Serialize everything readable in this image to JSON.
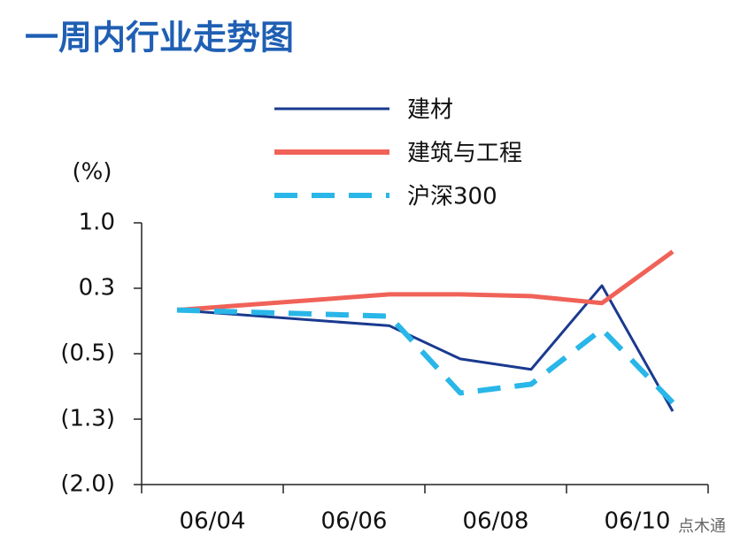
{
  "chart_data": {
    "type": "line",
    "title": "一周内行业走势图",
    "y_unit_label": "(%)",
    "categories": [
      "06/04",
      null,
      "06/06",
      null,
      "06/08",
      null,
      "06/10",
      null
    ],
    "series": [
      {
        "name": "建材",
        "color": "#1a3a8f",
        "dash": false,
        "values": [
          0.0,
          null,
          null,
          -0.18,
          -0.56,
          -0.68,
          0.28,
          -1.16
        ]
      },
      {
        "name": "建筑与工程",
        "color": "#f06258",
        "dash": false,
        "values": [
          0.0,
          null,
          null,
          0.18,
          0.18,
          0.16,
          0.08,
          0.67
        ]
      },
      {
        "name": "沪深300",
        "color": "#29b6e8",
        "dash": true,
        "values": [
          0.0,
          null,
          null,
          -0.07,
          -0.95,
          -0.85,
          -0.22,
          -1.06
        ]
      }
    ],
    "ylim": [
      -2.0,
      1.0
    ],
    "yticks": [
      {
        "value": 1.0,
        "label": "1.0"
      },
      {
        "value": 0.25,
        "label": "0.3"
      },
      {
        "value": -0.5,
        "label": "(0.5)"
      },
      {
        "value": -1.25,
        "label": "(1.3)"
      },
      {
        "value": -2.0,
        "label": "(2.0)"
      }
    ],
    "legend": "top-right",
    "watermark": "点木通"
  }
}
